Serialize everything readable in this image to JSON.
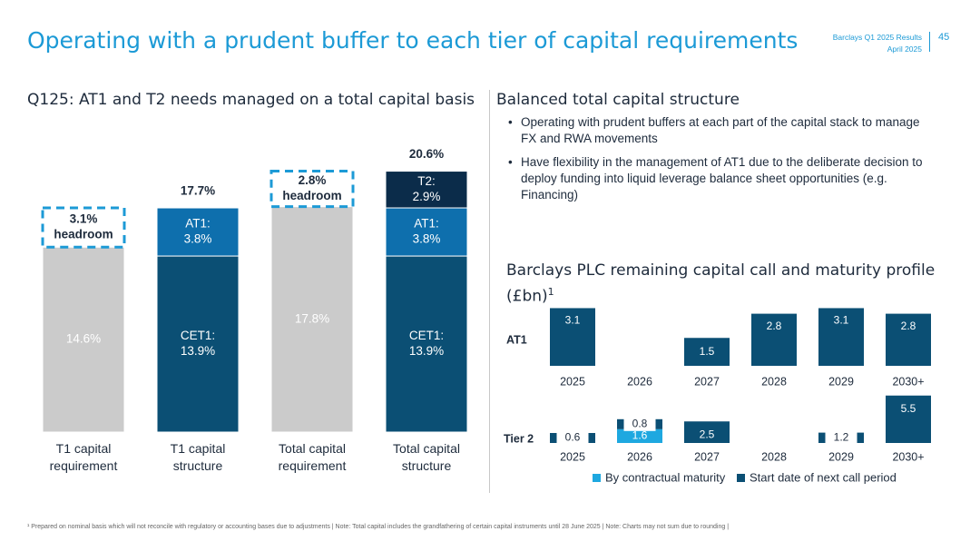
{
  "header": {
    "title": "Operating with a prudent buffer to each tier of capital requirements",
    "source_line1": "Barclays Q1 2025 Results",
    "source_line2": "April 2025",
    "page_number": "45"
  },
  "left": {
    "subtitle": "Q125: AT1 and T2 needs managed on a total capital basis"
  },
  "right": {
    "subtitle": "Balanced total capital structure",
    "bullets": [
      "Operating with prudent buffers at each part of the capital stack to manage FX and RWA movements",
      "Have flexibility in the management of AT1 due to the deliberate decision to deploy funding into liquid leverage balance sheet opportunities (e.g. Financing)"
    ],
    "maturity_title_line1": "Barclays PLC remaining capital call and maturity profile",
    "maturity_title_line2": "(£bn)",
    "maturity_title_sup": "1"
  },
  "footnote": "¹ Prepared on nominal basis which will not reconcile with regulatory or accounting bases due to adjustments | Note: Total capital includes the grandfathering of certain capital instruments until 28 June 2025 | Note: Charts may not sum due to rounding |",
  "colors": {
    "accent": "#1c9ad6",
    "navy": "#0b4f74",
    "mid_blue": "#0e6fad",
    "dark_navy": "#0b2c4a",
    "grey": "#cbcbcb",
    "light_blue": "#1ea8e0"
  },
  "chart_data": [
    {
      "type": "bar",
      "stacked": true,
      "categories": [
        "T1 capital requirement",
        "T1 capital structure",
        "Total capital requirement",
        "Total capital structure"
      ],
      "ylim": [
        0,
        21.5
      ],
      "bars": [
        {
          "total_label": "",
          "segments": [
            {
              "label": "14.6%",
              "value": 14.6,
              "color": "#cbcbcb"
            },
            {
              "label": "3.1%\nheadroom",
              "value": 3.1,
              "style": "headroom"
            }
          ]
        },
        {
          "total_label": "17.7%",
          "segments": [
            {
              "label": "CET1:\n13.9%",
              "value": 13.9,
              "color": "#0b4f74"
            },
            {
              "label": "AT1:\n3.8%",
              "value": 3.8,
              "color": "#0e6fad"
            }
          ]
        },
        {
          "total_label": "",
          "segments": [
            {
              "label": "17.8%",
              "value": 17.8,
              "color": "#cbcbcb"
            },
            {
              "label": "2.8%\nheadroom",
              "value": 2.8,
              "style": "headroom"
            }
          ]
        },
        {
          "total_label": "20.6%",
          "segments": [
            {
              "label": "CET1:\n13.9%",
              "value": 13.9,
              "color": "#0b4f74"
            },
            {
              "label": "AT1:\n3.8%",
              "value": 3.8,
              "color": "#0e6fad"
            },
            {
              "label": "T2:\n2.9%",
              "value": 2.9,
              "color": "#0b2c4a"
            }
          ]
        }
      ]
    },
    {
      "type": "bar",
      "categories": [
        "2025",
        "2026",
        "2027",
        "2028",
        "2029",
        "2030+"
      ],
      "series": [
        {
          "name": "AT1",
          "values": [
            3.1,
            null,
            1.5,
            2.8,
            3.1,
            2.8
          ]
        },
        {
          "name": "Tier 2 - Start date of next call period",
          "values": [
            0.6,
            0.8,
            2.5,
            null,
            1.2,
            5.5
          ]
        },
        {
          "name": "Tier 2 - By contractual maturity",
          "values": [
            null,
            1.6,
            null,
            null,
            null,
            null
          ]
        }
      ],
      "row_labels": [
        "AT1",
        "Tier 2"
      ],
      "legend": [
        {
          "name": "By contractual maturity",
          "color": "#1ea8e0"
        },
        {
          "name": "Start date of next call period",
          "color": "#0b4f74"
        }
      ],
      "legend_position": "bottom"
    }
  ]
}
